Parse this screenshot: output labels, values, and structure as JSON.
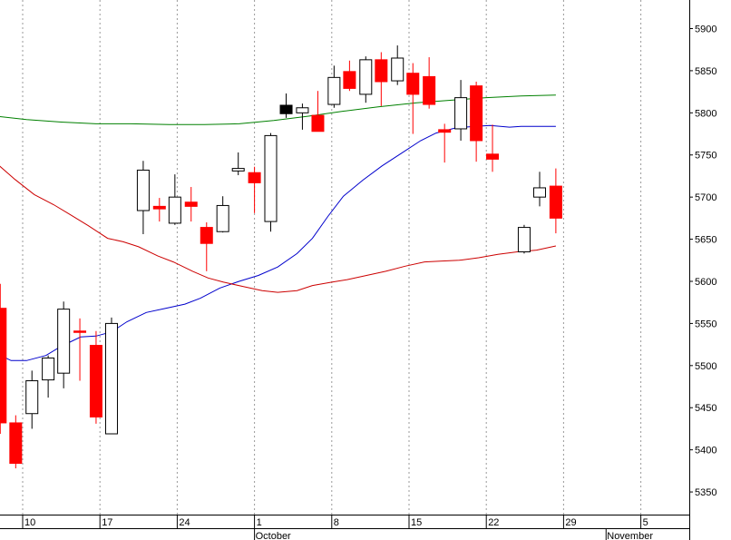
{
  "chart_data": {
    "type": "candlestick",
    "ylim": [
      5310,
      5930
    ],
    "xlim": [
      -0.35,
      10.05
    ],
    "y_ticks": [
      5350,
      5400,
      5450,
      5500,
      5550,
      5600,
      5650,
      5700,
      5750,
      5800,
      5850,
      5900
    ],
    "y_tick_labels": [
      "5350",
      "5400",
      "5450",
      "5500",
      "5550",
      "5600",
      "5650",
      "5700",
      "5750",
      "5800",
      "5850",
      "5900"
    ],
    "x_ticks": [
      {
        "week": 0,
        "label": "10"
      },
      {
        "week": 1,
        "label": "17"
      },
      {
        "week": 2,
        "label": "24"
      },
      {
        "week": 3,
        "label": "1"
      },
      {
        "week": 4,
        "label": "8"
      },
      {
        "week": 5,
        "label": "15"
      },
      {
        "week": 6,
        "label": "22"
      },
      {
        "week": 7,
        "label": "29"
      },
      {
        "week": 8,
        "label": "5"
      }
    ],
    "months": [
      {
        "week": 3,
        "label": "October"
      },
      {
        "week": 7.55,
        "label": "November"
      }
    ],
    "candles": [
      {
        "w": -0.29,
        "o": 5568,
        "h": 5597,
        "l": 5419,
        "c": 5432
      },
      {
        "w": -0.09,
        "o": 5432,
        "h": 5441,
        "l": 5378,
        "c": 5384
      },
      {
        "w": 0.12,
        "o": 5443,
        "h": 5494,
        "l": 5425,
        "c": 5482
      },
      {
        "w": 0.33,
        "o": 5483,
        "h": 5512,
        "l": 5462,
        "c": 5509
      },
      {
        "w": 0.53,
        "o": 5491,
        "h": 5576,
        "l": 5473,
        "c": 5567
      },
      {
        "w": 0.74,
        "o": 5541,
        "h": 5556,
        "l": 5482,
        "c": 5540
      },
      {
        "w": 0.95,
        "o": 5524,
        "h": 5541,
        "l": 5431,
        "c": 5439
      },
      {
        "w": 1.15,
        "o": 5419,
        "h": 5557,
        "l": 5419,
        "c": 5550
      },
      {
        "w": 1.56,
        "o": 5684,
        "h": 5743,
        "l": 5656,
        "c": 5732
      },
      {
        "w": 1.77,
        "o": 5689,
        "h": 5699,
        "l": 5671,
        "c": 5686
      },
      {
        "w": 1.97,
        "o": 5669,
        "h": 5727,
        "l": 5667,
        "c": 5700
      },
      {
        "w": 2.18,
        "o": 5694,
        "h": 5712,
        "l": 5671,
        "c": 5689
      },
      {
        "w": 2.38,
        "o": 5664,
        "h": 5670,
        "l": 5612,
        "c": 5645
      },
      {
        "w": 2.59,
        "o": 5659,
        "h": 5701,
        "l": 5658,
        "c": 5690
      },
      {
        "w": 2.79,
        "o": 5731,
        "h": 5753,
        "l": 5726,
        "c": 5734
      },
      {
        "w": 3.0,
        "o": 5729,
        "h": 5736,
        "l": 5681,
        "c": 5717
      },
      {
        "w": 3.21,
        "o": 5671,
        "h": 5776,
        "l": 5659,
        "c": 5773
      },
      {
        "w": 3.41,
        "o": 5809,
        "h": 5823,
        "l": 5794,
        "c": 5799,
        "filled_black": true
      },
      {
        "w": 3.62,
        "o": 5800,
        "h": 5811,
        "l": 5780,
        "c": 5806
      },
      {
        "w": 3.82,
        "o": 5797,
        "h": 5826,
        "l": 5779,
        "c": 5778
      },
      {
        "w": 4.03,
        "o": 5810,
        "h": 5856,
        "l": 5806,
        "c": 5842
      },
      {
        "w": 4.23,
        "o": 5849,
        "h": 5862,
        "l": 5826,
        "c": 5829
      },
      {
        "w": 4.44,
        "o": 5822,
        "h": 5867,
        "l": 5812,
        "c": 5863
      },
      {
        "w": 4.64,
        "o": 5863,
        "h": 5872,
        "l": 5808,
        "c": 5837
      },
      {
        "w": 4.85,
        "o": 5838,
        "h": 5880,
        "l": 5833,
        "c": 5865
      },
      {
        "w": 5.05,
        "o": 5847,
        "h": 5859,
        "l": 5775,
        "c": 5822
      },
      {
        "w": 5.26,
        "o": 5843,
        "h": 5866,
        "l": 5805,
        "c": 5810
      },
      {
        "w": 5.46,
        "o": 5780,
        "h": 5787,
        "l": 5741,
        "c": 5777
      },
      {
        "w": 5.67,
        "o": 5781,
        "h": 5839,
        "l": 5767,
        "c": 5818
      },
      {
        "w": 5.87,
        "o": 5832,
        "h": 5837,
        "l": 5742,
        "c": 5767
      },
      {
        "w": 6.08,
        "o": 5751,
        "h": 5786,
        "l": 5730,
        "c": 5745
      },
      {
        "w": 6.49,
        "o": 5635,
        "h": 5667,
        "l": 5633,
        "c": 5664
      },
      {
        "w": 6.69,
        "o": 5700,
        "h": 5730,
        "l": 5689,
        "c": 5711
      },
      {
        "w": 6.9,
        "o": 5713,
        "h": 5734,
        "l": 5657,
        "c": 5675
      }
    ],
    "series": [
      {
        "color": "#0000cc",
        "points": [
          [
            -0.35,
            5515
          ],
          [
            -0.15,
            5506
          ],
          [
            0.05,
            5506
          ],
          [
            0.3,
            5512
          ],
          [
            0.5,
            5523
          ],
          [
            0.75,
            5534
          ],
          [
            0.95,
            5535
          ],
          [
            1.15,
            5540
          ],
          [
            1.35,
            5552
          ],
          [
            1.6,
            5563
          ],
          [
            1.85,
            5568
          ],
          [
            2.1,
            5573
          ],
          [
            2.3,
            5580
          ],
          [
            2.55,
            5592
          ],
          [
            2.8,
            5600
          ],
          [
            3.05,
            5607
          ],
          [
            3.3,
            5617
          ],
          [
            3.55,
            5633
          ],
          [
            3.75,
            5651
          ],
          [
            3.95,
            5677
          ],
          [
            4.15,
            5701
          ],
          [
            4.4,
            5720
          ],
          [
            4.65,
            5737
          ],
          [
            4.9,
            5752
          ],
          [
            5.15,
            5767
          ],
          [
            5.35,
            5776
          ],
          [
            5.6,
            5782
          ],
          [
            5.85,
            5784
          ],
          [
            6.05,
            5785
          ],
          [
            6.3,
            5783
          ],
          [
            6.45,
            5784
          ],
          [
            6.9,
            5784
          ]
        ]
      },
      {
        "color": "#cc0000",
        "points": [
          [
            -0.35,
            5741
          ],
          [
            -0.1,
            5721
          ],
          [
            0.15,
            5703
          ],
          [
            0.4,
            5691
          ],
          [
            0.6,
            5680
          ],
          [
            0.85,
            5666
          ],
          [
            1.1,
            5651
          ],
          [
            1.3,
            5647
          ],
          [
            1.5,
            5641
          ],
          [
            1.75,
            5630
          ],
          [
            1.95,
            5623
          ],
          [
            2.2,
            5612
          ],
          [
            2.4,
            5604
          ],
          [
            2.6,
            5599
          ],
          [
            2.85,
            5594
          ],
          [
            3.1,
            5589
          ],
          [
            3.3,
            5587
          ],
          [
            3.55,
            5589
          ],
          [
            3.75,
            5595
          ],
          [
            4.0,
            5599
          ],
          [
            4.2,
            5602
          ],
          [
            4.45,
            5607
          ],
          [
            4.7,
            5612
          ],
          [
            4.95,
            5618
          ],
          [
            5.2,
            5623
          ],
          [
            5.4,
            5624
          ],
          [
            5.65,
            5625
          ],
          [
            5.9,
            5628
          ],
          [
            6.15,
            5632
          ],
          [
            6.4,
            5635
          ],
          [
            6.65,
            5637
          ],
          [
            6.9,
            5642
          ]
        ]
      },
      {
        "color": "#008000",
        "points": [
          [
            -0.35,
            5796
          ],
          [
            0.05,
            5792
          ],
          [
            0.5,
            5789
          ],
          [
            0.95,
            5787
          ],
          [
            1.4,
            5787
          ],
          [
            1.9,
            5786
          ],
          [
            2.35,
            5786
          ],
          [
            2.8,
            5787
          ],
          [
            3.25,
            5791
          ],
          [
            3.7,
            5796
          ],
          [
            4.15,
            5802
          ],
          [
            4.6,
            5807
          ],
          [
            5.1,
            5812
          ],
          [
            5.55,
            5815
          ],
          [
            6.0,
            5818
          ],
          [
            6.45,
            5820
          ],
          [
            6.9,
            5821
          ]
        ]
      }
    ],
    "colors": {
      "up_fill": "#ffffff",
      "down_fill": "#ff0000",
      "black_fill": "#000000",
      "grid": "#999999",
      "axis": "#000000"
    }
  }
}
